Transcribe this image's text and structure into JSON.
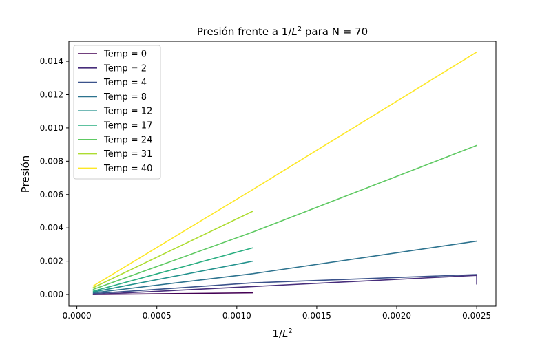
{
  "chart_data": {
    "type": "line",
    "title_prefix": "Presión frente a 1/",
    "title_var": "L",
    "title_exp": "2",
    "title_suffix": " para N = 70",
    "xlabel_prefix": "1/",
    "xlabel_var": "L",
    "xlabel_exp": "2",
    "ylabel": "Presión",
    "xlim": [
      -5e-05,
      0.00262
    ],
    "ylim": [
      -0.0007,
      0.0152
    ],
    "xticks": [
      0.0,
      0.0005,
      0.001,
      0.0015,
      0.002,
      0.0025
    ],
    "xtick_labels": [
      "0.0000",
      "0.0005",
      "0.0010",
      "0.0015",
      "0.0020",
      "0.0025"
    ],
    "yticks": [
      0.0,
      0.002,
      0.004,
      0.006,
      0.008,
      0.01,
      0.012,
      0.014
    ],
    "ytick_labels": [
      "0.000",
      "0.002",
      "0.004",
      "0.006",
      "0.008",
      "0.010",
      "0.012",
      "0.014"
    ],
    "grid": false,
    "legend_position": "top-left",
    "series": [
      {
        "name": "Temp = 0",
        "color": "#440154",
        "x": [
          0.0001,
          0.0011
        ],
        "y": [
          0.0,
          0.0001
        ]
      },
      {
        "name": "Temp = 2",
        "color": "#472d7b",
        "x": [
          0.0001,
          0.0025,
          0.0025
        ],
        "y": [
          0.0,
          0.00115,
          0.0006
        ]
      },
      {
        "name": "Temp = 4",
        "color": "#3b528b",
        "x": [
          0.0001,
          0.0011,
          0.0025
        ],
        "y": [
          5e-05,
          0.0007,
          0.0012
        ]
      },
      {
        "name": "Temp = 8",
        "color": "#2c728e",
        "x": [
          0.0001,
          0.0011,
          0.0025
        ],
        "y": [
          0.0001,
          0.00125,
          0.0032
        ]
      },
      {
        "name": "Temp = 12",
        "color": "#21918c",
        "x": [
          0.0001,
          0.0011
        ],
        "y": [
          0.00015,
          0.002
        ]
      },
      {
        "name": "Temp = 17",
        "color": "#28ae80",
        "x": [
          0.0001,
          0.0011
        ],
        "y": [
          0.0002,
          0.0028
        ]
      },
      {
        "name": "Temp = 24",
        "color": "#5ec962",
        "x": [
          0.0001,
          0.0011,
          0.0025
        ],
        "y": [
          0.0003,
          0.00375,
          0.00895
        ]
      },
      {
        "name": "Temp = 31",
        "color": "#addc30",
        "x": [
          0.0001,
          0.0011
        ],
        "y": [
          0.0004,
          0.005
        ]
      },
      {
        "name": "Temp = 40",
        "color": "#fde725",
        "x": [
          0.0001,
          0.0011,
          0.0025
        ],
        "y": [
          0.0005,
          0.0063,
          0.01455
        ]
      }
    ]
  }
}
